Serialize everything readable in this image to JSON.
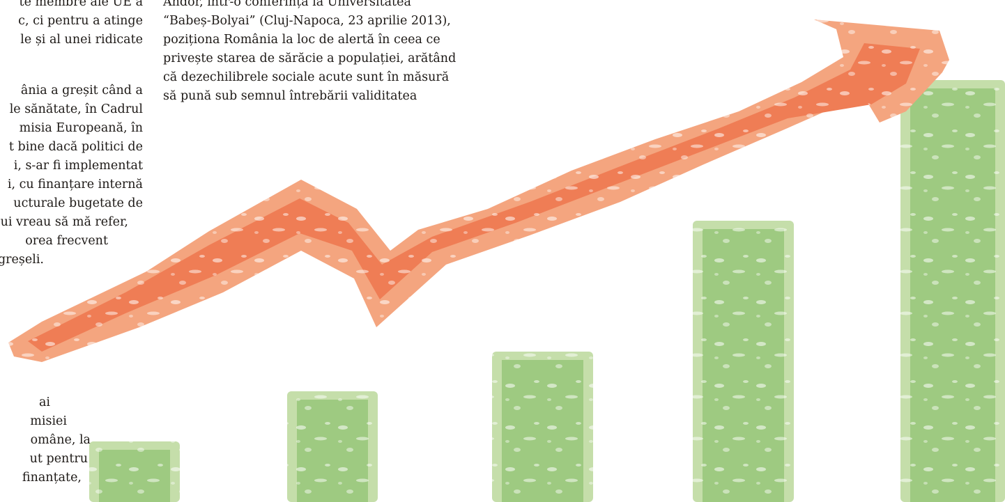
{
  "text_left": {
    "lines": [
      "te membre ale UE a",
      "c, ci pentru a atinge",
      "le și al unei ridicate",
      "",
      "ânia a greșit când a",
      "le sănătate, în Cadrul",
      "misia Europeană, în",
      "t bine dacă politici de",
      "i, s-ar fi implementat",
      "i, cu finanțare internă",
      "ucturale bugetate de",
      "ui vreau să mă refer,",
      "orea frecvent",
      "greșeli."
    ]
  },
  "text_left_lower": {
    "lines": [
      "ai",
      "misiei",
      "omâne, la",
      "ut pentru",
      "finanțate,"
    ]
  },
  "text_middle": {
    "lines": [
      "Andor, într-o conferință la Universitatea",
      "“Babeș-Bolyai” (Cluj-Napoca, 23 aprilie 2013),",
      "poziționa România la loc de alertă în ceea ce",
      "privește starea de sărăcie a populației, arătând",
      "că dezechilibrele sociale acute sunt în măsură",
      "să pună sub semnul întrebării validitatea"
    ]
  },
  "illustration": {
    "arrow_color_light": "#f4a57f",
    "arrow_color_dark": "#ef7d55",
    "bar_color_light": "#c5deaa",
    "bar_color_dark": "#96c77a",
    "bar_levels": [
      0.12,
      0.22,
      0.3,
      0.56,
      0.84
    ]
  }
}
